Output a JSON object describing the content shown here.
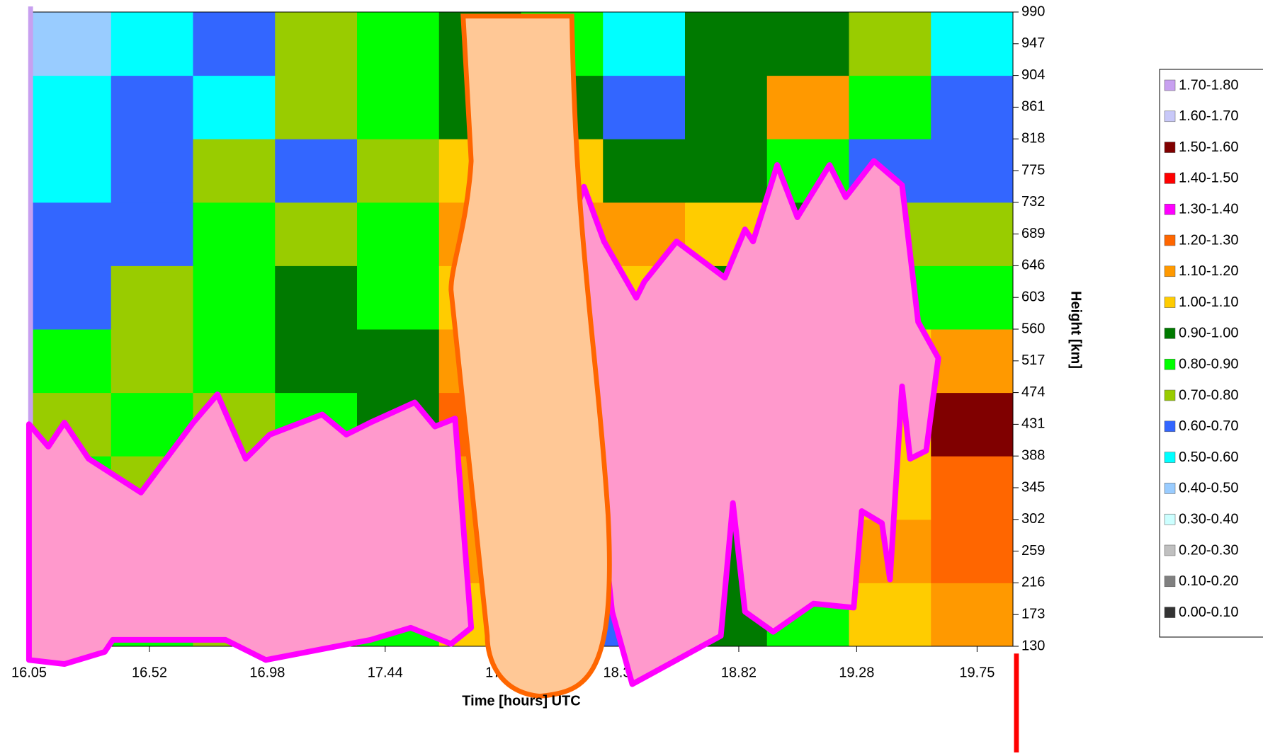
{
  "chart_data": {
    "type": "contour",
    "x_label": "Time  [hours] UTC",
    "y_label": "Height  [km]",
    "xlim": [
      16.05,
      19.89
    ],
    "ylim": [
      130,
      990
    ],
    "xticks": [
      16.05,
      16.52,
      16.98,
      17.44,
      {
        "value": 17.9,
        "label": "17.90"
      },
      18.36,
      18.82,
      19.28,
      19.75
    ],
    "yticks": [
      130,
      173,
      216,
      259,
      302,
      345,
      388,
      431,
      474,
      517,
      560,
      603,
      646,
      689,
      732,
      775,
      818,
      861,
      904,
      947,
      990
    ],
    "x": [
      16.21,
      16.53,
      16.85,
      17.17,
      17.49,
      17.81,
      18.13,
      18.45,
      18.77,
      19.09,
      19.41,
      19.73
    ],
    "y": [
      173,
      259,
      345,
      431,
      517,
      603,
      689,
      775,
      861,
      947
    ],
    "z": [
      [
        0.8,
        0.8,
        0.7,
        0.7,
        0.8,
        1.0,
        0.9,
        0.6,
        0.9,
        0.8,
        1.0,
        1.1
      ],
      [
        0.7,
        0.8,
        0.8,
        0.7,
        0.8,
        1.1,
        1.0,
        0.9,
        0.9,
        0.9,
        1.1,
        1.2
      ],
      [
        0.8,
        0.7,
        0.8,
        0.8,
        0.9,
        1.1,
        1.0,
        0.9,
        0.8,
        0.9,
        1.0,
        1.2
      ],
      [
        0.7,
        0.8,
        0.7,
        0.8,
        0.9,
        1.2,
        1.0,
        1.0,
        0.9,
        0.9,
        1.0,
        1.5
      ],
      [
        0.8,
        0.7,
        0.8,
        0.9,
        0.9,
        1.1,
        1.0,
        0.9,
        1.0,
        0.9,
        1.0,
        1.1
      ],
      [
        0.6,
        0.7,
        0.8,
        0.9,
        0.8,
        1.0,
        0.9,
        1.0,
        0.9,
        0.8,
        0.8,
        0.8
      ],
      [
        0.6,
        0.6,
        0.8,
        0.7,
        0.8,
        1.1,
        1.1,
        1.1,
        1.0,
        0.9,
        0.7,
        0.7
      ],
      [
        0.5,
        0.6,
        0.7,
        0.6,
        0.7,
        1.0,
        1.0,
        0.9,
        0.9,
        0.8,
        0.6,
        0.6
      ],
      [
        0.5,
        0.6,
        0.5,
        0.7,
        0.8,
        0.9,
        0.9,
        0.6,
        0.9,
        1.1,
        0.8,
        0.6
      ],
      [
        0.4,
        0.5,
        0.6,
        0.7,
        0.8,
        0.9,
        0.8,
        0.5,
        0.9,
        0.9,
        0.7,
        0.5
      ]
    ],
    "levels": [
      0,
      0.1,
      0.2,
      0.3,
      0.4,
      0.5,
      0.6,
      0.7,
      0.8,
      0.9,
      1.0,
      1.1,
      1.2,
      1.3,
      1.4,
      1.5,
      1.6,
      1.7,
      1.8
    ],
    "legend": [
      {
        "label": "1.70-1.80",
        "color": "#c8a0f0"
      },
      {
        "label": "1.60-1.70",
        "color": "#c8c8f8"
      },
      {
        "label": "1.50-1.60",
        "color": "#800000"
      },
      {
        "label": "1.40-1.50",
        "color": "#ff0000"
      },
      {
        "label": "1.30-1.40",
        "color": "#ff00ff"
      },
      {
        "label": "1.20-1.30",
        "color": "#ff6600"
      },
      {
        "label": "1.10-1.20",
        "color": "#ff9900"
      },
      {
        "label": "1.00-1.10",
        "color": "#ffcc00"
      },
      {
        "label": "0.90-1.00",
        "color": "#007a00"
      },
      {
        "label": "0.80-0.90",
        "color": "#00ff00"
      },
      {
        "label": "0.70-0.80",
        "color": "#99cc00"
      },
      {
        "label": "0.60-0.70",
        "color": "#3366ff"
      },
      {
        "label": "0.50-0.60",
        "color": "#00ffff"
      },
      {
        "label": "0.40-0.50",
        "color": "#99ccff"
      },
      {
        "label": "0.30-0.40",
        "color": "#ccffff"
      },
      {
        "label": "0.20-0.30",
        "color": "#c0c0c0"
      },
      {
        "label": "0.10-0.20",
        "color": "#808080"
      },
      {
        "label": "0.00-0.10",
        "color": "#333333"
      }
    ]
  }
}
